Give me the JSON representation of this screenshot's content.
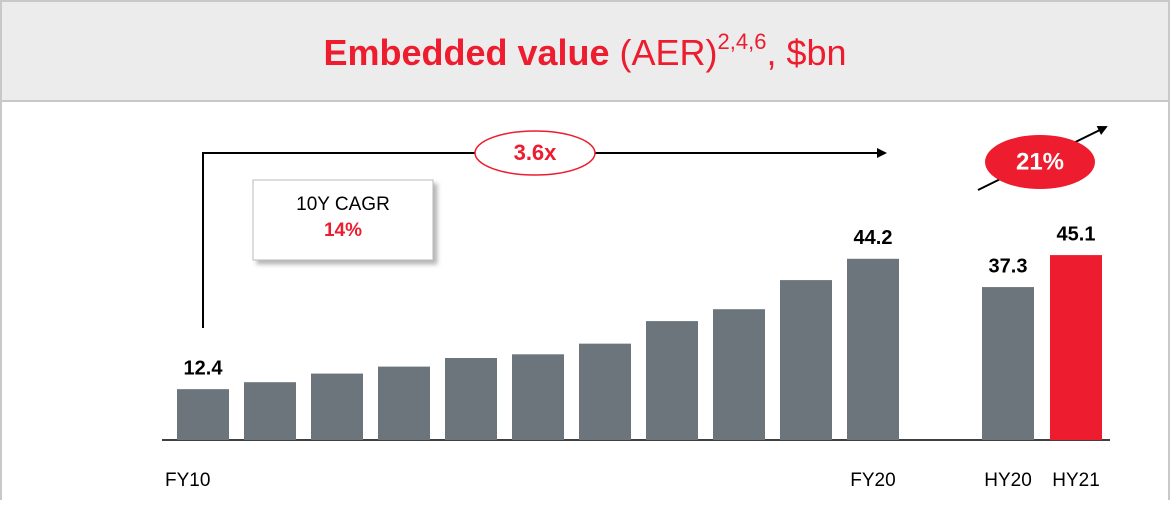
{
  "chart_data": {
    "type": "bar",
    "title": {
      "bold": "Embedded value",
      "rest": "(AER)",
      "sup": "2,4,6",
      "suffix": ", $bn"
    },
    "categories": [
      "FY10",
      null,
      null,
      null,
      null,
      null,
      null,
      null,
      null,
      null,
      "FY20",
      "HY20",
      "HY21"
    ],
    "values": [
      12.4,
      14.1,
      16.2,
      17.9,
      20.0,
      20.9,
      23.5,
      29.0,
      31.9,
      39.0,
      44.2,
      37.3,
      45.1
    ],
    "value_labels": [
      "12.4",
      null,
      null,
      null,
      null,
      null,
      null,
      null,
      null,
      null,
      "44.2",
      "37.3",
      "45.1"
    ],
    "colors": [
      "#6b757b",
      "#6b757b",
      "#6b757b",
      "#6b757b",
      "#6b757b",
      "#6b757b",
      "#6b757b",
      "#6b757b",
      "#6b757b",
      "#6b757b",
      "#6b757b",
      "#6b757b",
      "#ed1c2e"
    ],
    "annotations": {
      "multiple": "3.6x",
      "cagr_label": "10Y CAGR",
      "cagr_value": "14%",
      "growth": "21%"
    }
  }
}
